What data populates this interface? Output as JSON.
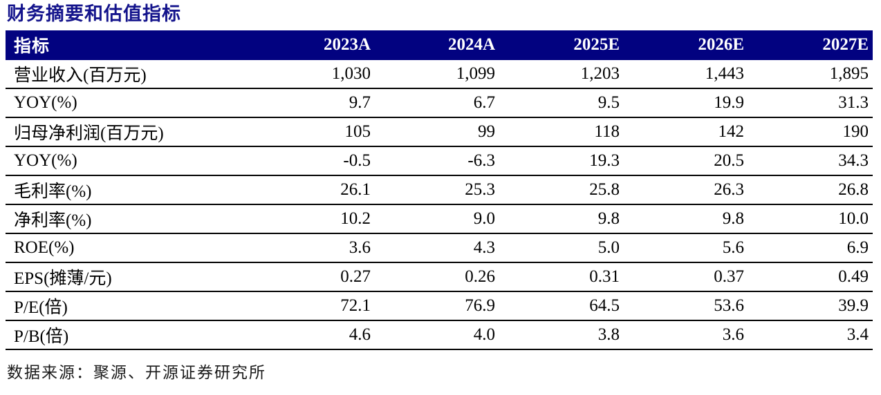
{
  "title": "财务摘要和估值指标",
  "colors": {
    "header_bg": "#020280",
    "header_text": "#ffffff",
    "title_text": "#14148c",
    "row_divider": "#000000",
    "body_text": "#000000"
  },
  "table": {
    "header": [
      "指标",
      "2023A",
      "2024A",
      "2025E",
      "2026E",
      "2027E"
    ],
    "rows": [
      {
        "label": "营业收入(百万元)",
        "values": [
          "1,030",
          "1,099",
          "1,203",
          "1,443",
          "1,895"
        ]
      },
      {
        "label": "YOY(%)",
        "values": [
          "9.7",
          "6.7",
          "9.5",
          "19.9",
          "31.3"
        ]
      },
      {
        "label": "归母净利润(百万元)",
        "values": [
          "105",
          "99",
          "118",
          "142",
          "190"
        ]
      },
      {
        "label": "YOY(%)",
        "values": [
          "-0.5",
          "-6.3",
          "19.3",
          "20.5",
          "34.3"
        ]
      },
      {
        "label": "毛利率(%)",
        "values": [
          "26.1",
          "25.3",
          "25.8",
          "26.3",
          "26.8"
        ]
      },
      {
        "label": "净利率(%)",
        "values": [
          "10.2",
          "9.0",
          "9.8",
          "9.8",
          "10.0"
        ]
      },
      {
        "label": "ROE(%)",
        "values": [
          "3.6",
          "4.3",
          "5.0",
          "5.6",
          "6.9"
        ]
      },
      {
        "label": "EPS(摊薄/元)",
        "values": [
          "0.27",
          "0.26",
          "0.31",
          "0.37",
          "0.49"
        ]
      },
      {
        "label": "P/E(倍)",
        "values": [
          "72.1",
          "76.9",
          "64.5",
          "53.6",
          "39.9"
        ]
      },
      {
        "label": "P/B(倍)",
        "values": [
          "4.6",
          "4.0",
          "3.8",
          "3.6",
          "3.4"
        ]
      }
    ]
  },
  "footer": {
    "source": "数据来源：聚源、开源证券研究所"
  }
}
